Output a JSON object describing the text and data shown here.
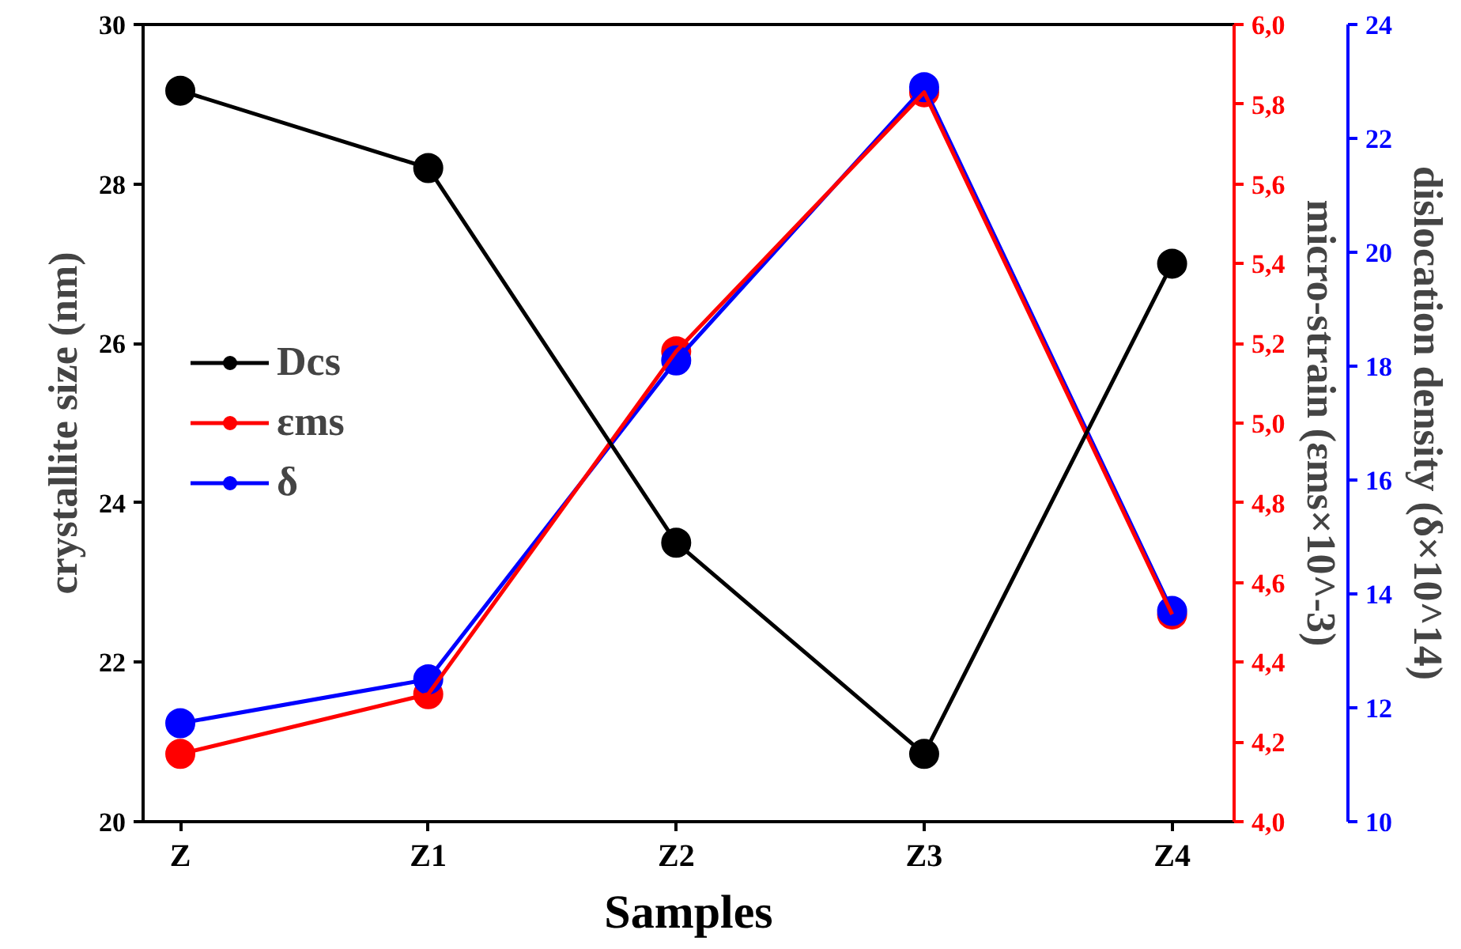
{
  "chart_data": {
    "type": "line",
    "xlabel": "Samples",
    "ylabel": "crystallite size (nm)",
    "y2label": "micro-strain (εms×10^-3)",
    "y3label": "dislocation density (δ×10^14)",
    "categories": [
      "Z",
      "Z1",
      "Z2",
      "Z3",
      "Z4"
    ],
    "series": [
      {
        "name": "Dcs",
        "color": "#000000",
        "values": [
          29.17,
          28.2,
          23.5,
          20.85,
          27.0
        ]
      },
      {
        "name": "εms",
        "color": "#ff0000",
        "axis": "y2",
        "values": [
          4.17,
          4.32,
          5.18,
          5.83,
          4.52
        ]
      },
      {
        "name": "δ",
        "color": "#0000ff",
        "axis": "y3",
        "values": [
          11.73,
          12.5,
          18.1,
          22.9,
          13.7
        ]
      }
    ],
    "ylim": [
      20,
      30
    ],
    "yticks": [
      20,
      22,
      24,
      26,
      28,
      30
    ],
    "y2lim": [
      4.0,
      6.0
    ],
    "y2ticks": [
      {
        "value": 4.0,
        "label": "4,0"
      },
      {
        "value": 4.2,
        "label": "4,2"
      },
      {
        "value": 4.4,
        "label": "4,4"
      },
      {
        "value": 4.6,
        "label": "4,6"
      },
      {
        "value": 4.8,
        "label": "4,8"
      },
      {
        "value": 5.0,
        "label": "5,0"
      },
      {
        "value": 5.2,
        "label": "5,2"
      },
      {
        "value": 5.4,
        "label": "5,4"
      },
      {
        "value": 5.6,
        "label": "5,6"
      },
      {
        "value": 5.8,
        "label": "5,8"
      },
      {
        "value": 6.0,
        "label": "6,0"
      }
    ],
    "y3lim": [
      10,
      24
    ],
    "y3ticks": [
      10,
      12,
      14,
      16,
      18,
      20,
      22,
      24
    ],
    "marker": "circle",
    "line_style": "solid",
    "legend": "left",
    "grid": false
  }
}
